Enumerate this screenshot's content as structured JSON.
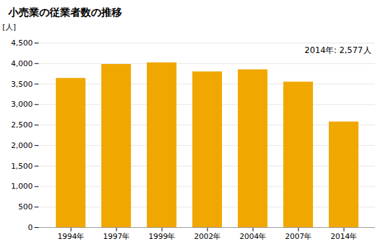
{
  "chart_data": {
    "type": "bar",
    "title": "小売業の従業者数の推移",
    "ylabel": "[人]",
    "annotation": "2014年: 2,577人",
    "categories": [
      "1994年",
      "1997年",
      "1999年",
      "2002年",
      "2004年",
      "2007年",
      "2014年"
    ],
    "values": [
      3640,
      3980,
      4020,
      3800,
      3850,
      3550,
      2577
    ],
    "color": "#F0A800",
    "ylim": [
      0,
      4500
    ],
    "yticks": [
      0,
      500,
      {
        "value": 1000,
        "label": "1,000"
      },
      {
        "value": 1500,
        "label": "1,500"
      },
      {
        "value": 2000,
        "label": "2,000"
      },
      {
        "value": 2500,
        "label": "2,500"
      },
      {
        "value": 3000,
        "label": "3,000"
      },
      {
        "value": 3500,
        "label": "3,500"
      },
      {
        "value": 4000,
        "label": "4,000"
      },
      {
        "value": 4500,
        "label": "4,500"
      }
    ],
    "grid": true
  }
}
